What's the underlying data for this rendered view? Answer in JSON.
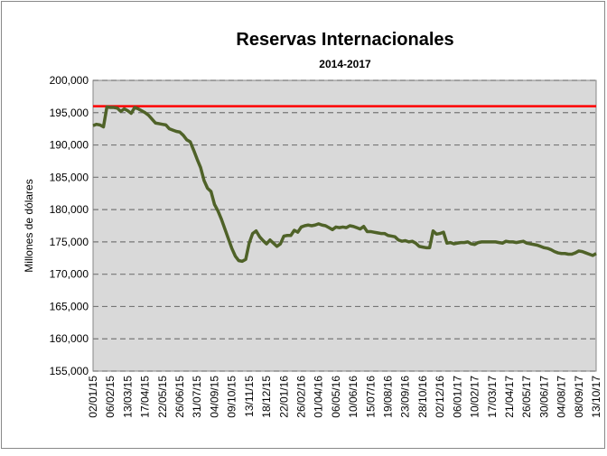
{
  "chart_data": {
    "type": "line",
    "title": "Reservas Internacionales",
    "subtitle": "2014-2017",
    "y_label": "Millones de dólares",
    "categories": [
      "02/01/15",
      null,
      null,
      null,
      null,
      "06/02/15",
      null,
      null,
      null,
      null,
      "13/03/15",
      null,
      null,
      null,
      null,
      "17/04/15",
      null,
      null,
      null,
      null,
      "22/05/15",
      null,
      null,
      null,
      null,
      "26/06/15",
      null,
      null,
      null,
      null,
      "31/07/15",
      null,
      null,
      null,
      null,
      "04/09/15",
      null,
      null,
      null,
      null,
      "09/10/15",
      null,
      null,
      null,
      null,
      "13/11/15",
      null,
      null,
      null,
      null,
      "18/12/15",
      null,
      null,
      null,
      null,
      "22/01/16",
      null,
      null,
      null,
      null,
      "26/02/16",
      null,
      null,
      null,
      null,
      "01/04/16",
      null,
      null,
      null,
      null,
      "06/05/16",
      null,
      null,
      null,
      null,
      "10/06/16",
      null,
      null,
      null,
      null,
      "15/07/16",
      null,
      null,
      null,
      null,
      "19/08/16",
      null,
      null,
      null,
      null,
      "23/09/16",
      null,
      null,
      null,
      null,
      "28/10/16",
      null,
      null,
      null,
      null,
      "02/12/16",
      null,
      null,
      null,
      null,
      "06/01/17",
      null,
      null,
      null,
      null,
      "10/02/17",
      null,
      null,
      null,
      null,
      "17/03/17",
      null,
      null,
      null,
      null,
      "21/04/17",
      null,
      null,
      null,
      null,
      "26/05/17",
      null,
      null,
      null,
      null,
      "30/06/17",
      null,
      null,
      null,
      null,
      "04/08/17",
      null,
      null,
      null,
      null,
      "08/09/17",
      null,
      null,
      null,
      null,
      "13/10/17"
    ],
    "series": [
      {
        "color": "#4f6228",
        "values": [
          193000,
          193200,
          193100,
          192800,
          195900,
          195800,
          195800,
          195700,
          195200,
          195600,
          195300,
          194900,
          195800,
          195600,
          195300,
          195000,
          194600,
          194000,
          193400,
          193300,
          193200,
          193100,
          192500,
          192300,
          192100,
          192000,
          191500,
          190800,
          190500,
          189200,
          187800,
          186500,
          184500,
          183300,
          182800,
          180800,
          179800,
          178500,
          177000,
          175500,
          174000,
          172800,
          172100,
          172000,
          172300,
          174800,
          176300,
          176700,
          175800,
          175200,
          174700,
          175300,
          174800,
          174300,
          174700,
          175900,
          176000,
          176000,
          176800,
          176500,
          177300,
          177500,
          177600,
          177500,
          177600,
          177800,
          177600,
          177500,
          177200,
          176900,
          177300,
          177200,
          177300,
          177200,
          177500,
          177400,
          177200,
          177000,
          177400,
          176600,
          176600,
          176500,
          176400,
          176300,
          176300,
          176000,
          175900,
          175800,
          175300,
          175100,
          175200,
          175000,
          175100,
          174800,
          174300,
          174200,
          174100,
          174100,
          176700,
          176200,
          176300,
          176500,
          174800,
          174900,
          174700,
          174800,
          174900,
          174900,
          175000,
          174700,
          174600,
          174900,
          175000,
          175000,
          175000,
          175000,
          175000,
          174900,
          174800,
          175100,
          175000,
          175000,
          174900,
          175000,
          175100,
          174800,
          174700,
          174600,
          174500,
          174300,
          174100,
          174000,
          173800,
          173500,
          173300,
          173200,
          173200,
          173100,
          173100,
          173300,
          173600,
          173500,
          173300,
          173100,
          172900,
          173200
        ]
      }
    ],
    "reference_line": {
      "value": 196000,
      "color": "#ff0000"
    },
    "ylim": [
      155000,
      200000
    ],
    "yticks": [
      {
        "value": 155000,
        "label": "155,000"
      },
      {
        "value": 160000,
        "label": "160,000"
      },
      {
        "value": 165000,
        "label": "165,000"
      },
      {
        "value": 170000,
        "label": "170,000"
      },
      {
        "value": 175000,
        "label": "175,000"
      },
      {
        "value": 180000,
        "label": "180,000"
      },
      {
        "value": 185000,
        "label": "185,000"
      },
      {
        "value": 190000,
        "label": "190,000"
      },
      {
        "value": 195000,
        "label": "195,000"
      },
      {
        "value": 200000,
        "label": "200,000"
      }
    ],
    "grid": true,
    "plot_background": "#d9d9d9"
  }
}
